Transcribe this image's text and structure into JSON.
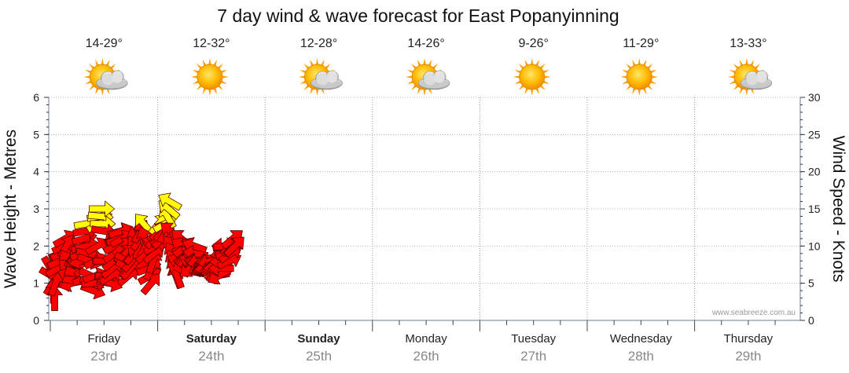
{
  "chart_data": {
    "type": "line",
    "title": "7 day wind & wave forecast for East Popanyinning",
    "ylabel_left": "Wave Height - Metres",
    "ylabel_right": "Wind Speed - Knots",
    "ylim_left": [
      0,
      6
    ],
    "ylim_right": [
      0,
      30
    ],
    "yticks_left": [
      "0",
      "1",
      "2",
      "3",
      "4",
      "5",
      "6"
    ],
    "yticks_right": [
      "0",
      "5",
      "10",
      "15",
      "20",
      "25",
      "30"
    ],
    "grid": true,
    "credit": "www.seabreeze.com.au",
    "days": [
      {
        "name": "Friday",
        "date": "23rd",
        "temp": "14-29°",
        "icon": "sun-cloud-icon",
        "bold": false
      },
      {
        "name": "Saturday",
        "date": "24th",
        "temp": "12-32°",
        "icon": "sun-icon",
        "bold": true
      },
      {
        "name": "Sunday",
        "date": "25th",
        "temp": "12-28°",
        "icon": "sun-cloud-icon",
        "bold": true
      },
      {
        "name": "Monday",
        "date": "26th",
        "temp": "14-26°",
        "icon": "sun-cloud-icon",
        "bold": false
      },
      {
        "name": "Tuesday",
        "date": "27th",
        "temp": "9-26°",
        "icon": "sun-icon",
        "bold": false
      },
      {
        "name": "Wednesday",
        "date": "28th",
        "temp": "11-29°",
        "icon": "sun-icon",
        "bold": false
      },
      {
        "name": "Thursday",
        "date": "29th",
        "temp": "13-33°",
        "icon": "sun-cloud-icon",
        "bold": false
      }
    ],
    "series": [
      {
        "name": "Wind",
        "unit": "knots",
        "color_normal": "#ff0000",
        "color_strong": "#ffff00",
        "strong_threshold": 13,
        "points": [
          [
            0.0,
            7,
            60
          ],
          [
            0.1,
            6,
            30
          ],
          [
            0.2,
            5,
            -60
          ],
          [
            0.3,
            4,
            -90
          ],
          [
            0.4,
            3,
            -90
          ],
          [
            0.5,
            5,
            -70
          ],
          [
            0.6,
            7,
            -50
          ],
          [
            0.7,
            7,
            -30
          ],
          [
            0.8,
            8,
            -25
          ],
          [
            0.9,
            8,
            -25
          ],
          [
            1.0,
            9,
            -20
          ],
          [
            1.1,
            9,
            -20
          ],
          [
            1.2,
            9,
            -20
          ],
          [
            1.3,
            10,
            -25
          ],
          [
            1.4,
            11,
            -30
          ],
          [
            1.5,
            10,
            -60
          ],
          [
            1.6,
            8,
            -120
          ],
          [
            1.7,
            7,
            -140
          ],
          [
            1.8,
            6,
            -160
          ],
          [
            1.9,
            5,
            170
          ],
          [
            2.0,
            5,
            160
          ],
          [
            2.1,
            6,
            150
          ],
          [
            2.2,
            7,
            140
          ],
          [
            2.3,
            7,
            150
          ],
          [
            2.4,
            8,
            160
          ],
          [
            2.5,
            8,
            170
          ],
          [
            2.6,
            8,
            180
          ],
          [
            2.7,
            8,
            180
          ],
          [
            2.8,
            8,
            170
          ],
          [
            2.9,
            8,
            165
          ],
          [
            3.0,
            9,
            -20
          ],
          [
            3.1,
            10,
            -20
          ],
          [
            3.2,
            11,
            -15
          ],
          [
            3.3,
            12,
            -10
          ],
          [
            3.4,
            13,
            -10
          ],
          [
            3.5,
            10,
            -10
          ],
          [
            3.6,
            9,
            10
          ],
          [
            3.7,
            8,
            20
          ],
          [
            3.8,
            6,
            25
          ],
          [
            3.9,
            5,
            20
          ],
          [
            4.0,
            4,
            20
          ],
          [
            4.1,
            5,
            -5
          ],
          [
            4.2,
            6,
            -20
          ],
          [
            4.3,
            8,
            -25
          ],
          [
            4.4,
            10,
            -30
          ],
          [
            4.5,
            13,
            -30
          ],
          [
            4.6,
            14,
            -10
          ],
          [
            4.7,
            14,
            5
          ],
          [
            4.8,
            15,
            0
          ],
          [
            4.9,
            13,
            0
          ],
          [
            5.0,
            12,
            10
          ],
          [
            5.1,
            8,
            0
          ],
          [
            5.2,
            8,
            0
          ],
          [
            5.3,
            6,
            0
          ],
          [
            5.4,
            6,
            0
          ],
          [
            5.5,
            5,
            10
          ],
          [
            5.6,
            5,
            20
          ],
          [
            5.7,
            6,
            -30
          ],
          [
            5.8,
            7,
            -40
          ],
          [
            5.9,
            8,
            -40
          ],
          [
            6.0,
            9,
            -35
          ],
          [
            6.1,
            10,
            -25
          ],
          [
            6.2,
            11,
            -20
          ],
          [
            6.3,
            11,
            -20
          ],
          [
            6.4,
            11,
            -20
          ],
          [
            6.5,
            12,
            -15
          ],
          [
            6.6,
            12,
            -20
          ],
          [
            6.7,
            11,
            -30
          ],
          [
            6.8,
            10,
            -40
          ],
          [
            6.9,
            9,
            -50
          ],
          [
            7.0,
            9,
            -40
          ],
          [
            7.1,
            8,
            30
          ],
          [
            7.2,
            7,
            30
          ],
          [
            7.3,
            6,
            -40
          ],
          [
            7.4,
            7,
            -45
          ],
          [
            7.5,
            7,
            -50
          ],
          [
            7.6,
            8,
            -50
          ],
          [
            7.7,
            9,
            -50
          ],
          [
            7.8,
            9,
            -50
          ],
          [
            7.9,
            11,
            -110
          ],
          [
            8.0,
            10,
            -130
          ],
          [
            8.1,
            9,
            -140
          ],
          [
            8.2,
            10,
            -80
          ],
          [
            8.3,
            11,
            -60
          ],
          [
            8.4,
            12,
            -60
          ],
          [
            8.5,
            12,
            -100
          ],
          [
            8.6,
            12,
            -110
          ],
          [
            8.7,
            13,
            -130
          ],
          [
            8.8,
            11,
            -110
          ],
          [
            8.9,
            10,
            -60
          ],
          [
            9.0,
            9,
            -40
          ],
          [
            9.1,
            8,
            -35
          ],
          [
            9.2,
            7,
            -20
          ],
          [
            9.3,
            6,
            -30
          ],
          [
            9.4,
            5,
            -50
          ],
          [
            9.5,
            7,
            -60
          ],
          [
            9.6,
            8,
            -70
          ],
          [
            9.7,
            9,
            -40
          ],
          [
            9.8,
            10,
            -30
          ],
          [
            9.9,
            11,
            -40
          ],
          [
            10.0,
            12,
            -45
          ],
          [
            10.1,
            13,
            -50
          ],
          [
            10.2,
            12,
            -60
          ],
          [
            10.3,
            12,
            -40
          ],
          [
            10.4,
            11,
            -30
          ],
          [
            10.5,
            11,
            -40
          ],
          [
            10.6,
            12,
            -45
          ],
          [
            10.7,
            13,
            -30
          ],
          [
            10.8,
            12,
            -60
          ],
          [
            10.9,
            14,
            -120
          ],
          [
            11.0,
            15,
            -140
          ],
          [
            11.1,
            16,
            -150
          ],
          [
            11.2,
            12,
            -140
          ],
          [
            11.3,
            10,
            -130
          ],
          [
            11.4,
            9,
            -120
          ],
          [
            11.5,
            8,
            -120
          ],
          [
            11.6,
            7,
            -115
          ],
          [
            11.7,
            6,
            -110
          ],
          [
            11.8,
            6,
            -110
          ],
          [
            11.9,
            7,
            -150
          ],
          [
            12.0,
            8,
            -160
          ],
          [
            12.1,
            11,
            -150
          ],
          [
            12.2,
            11,
            -140
          ],
          [
            12.3,
            10,
            -150
          ],
          [
            12.4,
            9,
            -160
          ],
          [
            12.5,
            9,
            -175
          ],
          [
            12.6,
            8,
            180
          ],
          [
            12.7,
            8,
            175
          ],
          [
            12.8,
            8,
            170
          ],
          [
            12.9,
            8,
            160
          ],
          [
            13.0,
            7,
            140
          ],
          [
            13.1,
            8,
            -160
          ],
          [
            13.2,
            9,
            -150
          ],
          [
            13.3,
            10,
            -150
          ],
          [
            13.4,
            10,
            -160
          ],
          [
            13.5,
            9,
            -170
          ],
          [
            13.6,
            8,
            -175
          ],
          [
            13.7,
            8,
            180
          ],
          [
            13.8,
            8,
            170
          ],
          [
            13.9,
            8,
            165
          ],
          [
            14.0,
            7,
            160
          ],
          [
            14.1,
            7,
            150
          ],
          [
            14.2,
            7,
            155
          ],
          [
            14.3,
            7,
            160
          ],
          [
            14.4,
            7,
            165
          ],
          [
            14.5,
            7,
            170
          ],
          [
            14.6,
            7,
            175
          ],
          [
            14.7,
            8,
            175
          ],
          [
            14.8,
            8,
            170
          ],
          [
            14.9,
            8,
            165
          ],
          [
            15.0,
            7,
            160
          ],
          [
            15.1,
            7,
            150
          ],
          [
            15.2,
            7,
            160
          ],
          [
            15.3,
            7,
            170
          ],
          [
            15.4,
            7,
            180
          ],
          [
            15.5,
            6,
            170
          ],
          [
            15.6,
            6,
            160
          ],
          [
            15.7,
            6,
            150
          ],
          [
            15.8,
            7,
            170
          ],
          [
            15.9,
            7,
            180
          ],
          [
            16.0,
            8,
            175
          ],
          [
            16.1,
            9,
            170
          ],
          [
            16.2,
            10,
            180
          ],
          [
            16.3,
            10,
            -10
          ],
          [
            16.4,
            10,
            -5
          ],
          [
            16.5,
            9,
            -5
          ],
          [
            16.6,
            9,
            -15
          ],
          [
            16.7,
            8,
            -25
          ],
          [
            16.8,
            9,
            -35
          ],
          [
            16.9,
            10,
            -40
          ],
          [
            17.0,
            11,
            -40
          ],
          [
            17.1,
            10,
            -45
          ],
          [
            17.2,
            10,
            -45
          ]
        ]
      }
    ]
  }
}
